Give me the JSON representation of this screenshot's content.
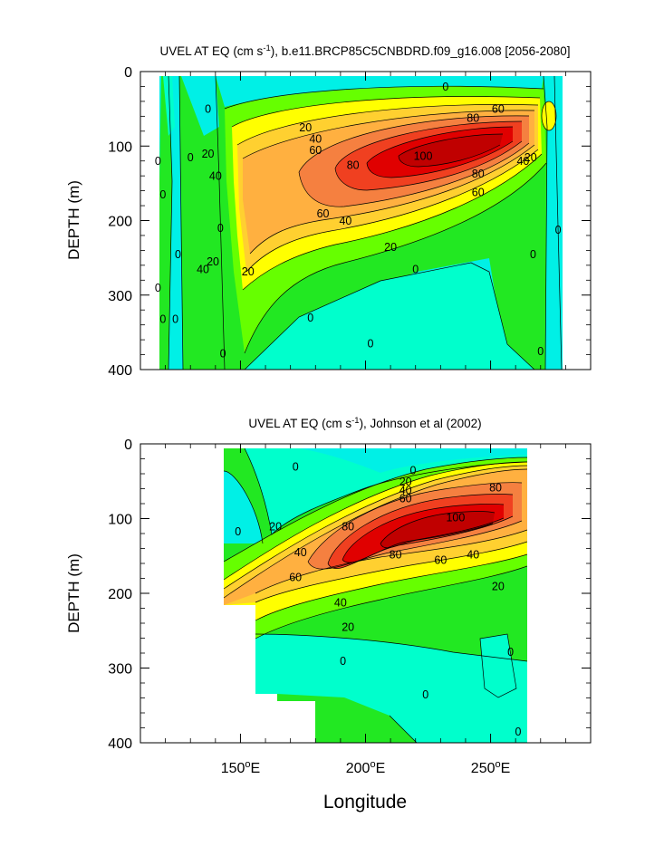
{
  "colors": {
    "cyan": "#00f0e6",
    "aqua": "#00ffcc",
    "green_light": "#66ff00",
    "green": "#22e822",
    "yellow": "#ffff00",
    "yellow_orange": "#ffd030",
    "orange": "#ffb040",
    "orange_dark": "#f58040",
    "red_orange": "#f04020",
    "red": "#e00000",
    "red_dark": "#c00000",
    "background": "#ffffff",
    "frame": "#000000"
  },
  "chart_data": [
    {
      "type": "contour",
      "title": "UVEL AT EQ (cm s$-1$), b.e11.BRCP85C5CNBDRD.f09_g16.008 [2056-2080]",
      "title_parts": {
        "pre": "UVEL AT EQ (cm s",
        "sup": "-1",
        "post": "), b.e11.BRCP85C5CNBDRD.f09_g16.008 [2056-2080]"
      },
      "ylabel": "DEPTH (m)",
      "ylim": [
        400,
        0
      ],
      "yticks": [
        "0",
        "100",
        "200",
        "300",
        "400"
      ],
      "xlim": [
        110,
        290
      ],
      "xticks": [],
      "data_lon_range": [
        117,
        278
      ],
      "core": {
        "lon": 235,
        "depth": 110,
        "max_speed": 100
      },
      "contour_labels": [
        {
          "text": "0",
          "lon": 232,
          "depth": 20
        },
        {
          "text": "0",
          "lon": 137,
          "depth": 50
        },
        {
          "text": "0",
          "lon": 117,
          "depth": 120
        },
        {
          "text": "0",
          "lon": 119,
          "depth": 165
        },
        {
          "text": "0",
          "lon": 130,
          "depth": 115
        },
        {
          "text": "0",
          "lon": 142,
          "depth": 210
        },
        {
          "text": "0",
          "lon": 125,
          "depth": 245
        },
        {
          "text": "0",
          "lon": 117,
          "depth": 290
        },
        {
          "text": "0",
          "lon": 119,
          "depth": 332
        },
        {
          "text": "0",
          "lon": 124,
          "depth": 332
        },
        {
          "text": "0",
          "lon": 143,
          "depth": 378
        },
        {
          "text": "0",
          "lon": 220,
          "depth": 265
        },
        {
          "text": "0",
          "lon": 178,
          "depth": 330
        },
        {
          "text": "0",
          "lon": 202,
          "depth": 365
        },
        {
          "text": "0",
          "lon": 267,
          "depth": 245
        },
        {
          "text": "0",
          "lon": 277,
          "depth": 212
        },
        {
          "text": "0",
          "lon": 270,
          "depth": 375
        },
        {
          "text": "20",
          "lon": 176,
          "depth": 75
        },
        {
          "text": "20",
          "lon": 137,
          "depth": 110
        },
        {
          "text": "20",
          "lon": 139,
          "depth": 255
        },
        {
          "text": "20",
          "lon": 153,
          "depth": 268
        },
        {
          "text": "20",
          "lon": 210,
          "depth": 235
        },
        {
          "text": "20",
          "lon": 266,
          "depth": 115
        },
        {
          "text": "40",
          "lon": 180,
          "depth": 90
        },
        {
          "text": "40",
          "lon": 140,
          "depth": 140
        },
        {
          "text": "40",
          "lon": 135,
          "depth": 265
        },
        {
          "text": "40",
          "lon": 192,
          "depth": 200
        },
        {
          "text": "40",
          "lon": 263,
          "depth": 120
        },
        {
          "text": "60",
          "lon": 180,
          "depth": 105
        },
        {
          "text": "60",
          "lon": 253,
          "depth": 50
        },
        {
          "text": "60",
          "lon": 183,
          "depth": 190
        },
        {
          "text": "60",
          "lon": 245,
          "depth": 162
        },
        {
          "text": "80",
          "lon": 243,
          "depth": 62
        },
        {
          "text": "80",
          "lon": 195,
          "depth": 125
        },
        {
          "text": "80",
          "lon": 245,
          "depth": 137
        },
        {
          "text": "100",
          "lon": 223,
          "depth": 113
        }
      ]
    },
    {
      "type": "contour",
      "title": "UVEL AT EQ (cm s$-1$), Johnson et al (2002)",
      "title_parts": {
        "pre": "UVEL AT EQ (cm s",
        "sup": "-1",
        "post": "), Johnson et al (2002)"
      },
      "ylabel": "DEPTH (m)",
      "xlabel": "Longitude",
      "ylim": [
        400,
        0
      ],
      "yticks": [
        "0",
        "100",
        "200",
        "300",
        "400"
      ],
      "xlim": [
        110,
        290
      ],
      "xticks": [
        {
          "value": 150,
          "label": "150",
          "unit_sup": "o",
          "unit": "E"
        },
        {
          "value": 200,
          "label": "200",
          "unit_sup": "o",
          "unit": "E"
        },
        {
          "value": 250,
          "label": "250",
          "unit_sup": "o",
          "unit": "E"
        }
      ],
      "data_lon_range": [
        143,
        265
      ],
      "core": {
        "lon": 230,
        "depth": 110,
        "max_speed": 100
      },
      "contour_labels": [
        {
          "text": "0",
          "lon": 172,
          "depth": 30
        },
        {
          "text": "0",
          "lon": 219,
          "depth": 35
        },
        {
          "text": "0",
          "lon": 149,
          "depth": 117
        },
        {
          "text": "0",
          "lon": 191,
          "depth": 290
        },
        {
          "text": "0",
          "lon": 258,
          "depth": 278
        },
        {
          "text": "0",
          "lon": 224,
          "depth": 335
        },
        {
          "text": "0",
          "lon": 261,
          "depth": 385
        },
        {
          "text": "20",
          "lon": 216,
          "depth": 50
        },
        {
          "text": "20",
          "lon": 164,
          "depth": 110
        },
        {
          "text": "20",
          "lon": 193,
          "depth": 245
        },
        {
          "text": "20",
          "lon": 253,
          "depth": 190
        },
        {
          "text": "40",
          "lon": 216,
          "depth": 62
        },
        {
          "text": "40",
          "lon": 174,
          "depth": 145
        },
        {
          "text": "40",
          "lon": 190,
          "depth": 212
        },
        {
          "text": "40",
          "lon": 243,
          "depth": 148
        },
        {
          "text": "60",
          "lon": 216,
          "depth": 73
        },
        {
          "text": "60",
          "lon": 172,
          "depth": 178
        },
        {
          "text": "60",
          "lon": 230,
          "depth": 155
        },
        {
          "text": "80",
          "lon": 252,
          "depth": 58
        },
        {
          "text": "80",
          "lon": 193,
          "depth": 110
        },
        {
          "text": "80",
          "lon": 212,
          "depth": 148
        },
        {
          "text": "100",
          "lon": 236,
          "depth": 98
        }
      ]
    }
  ]
}
